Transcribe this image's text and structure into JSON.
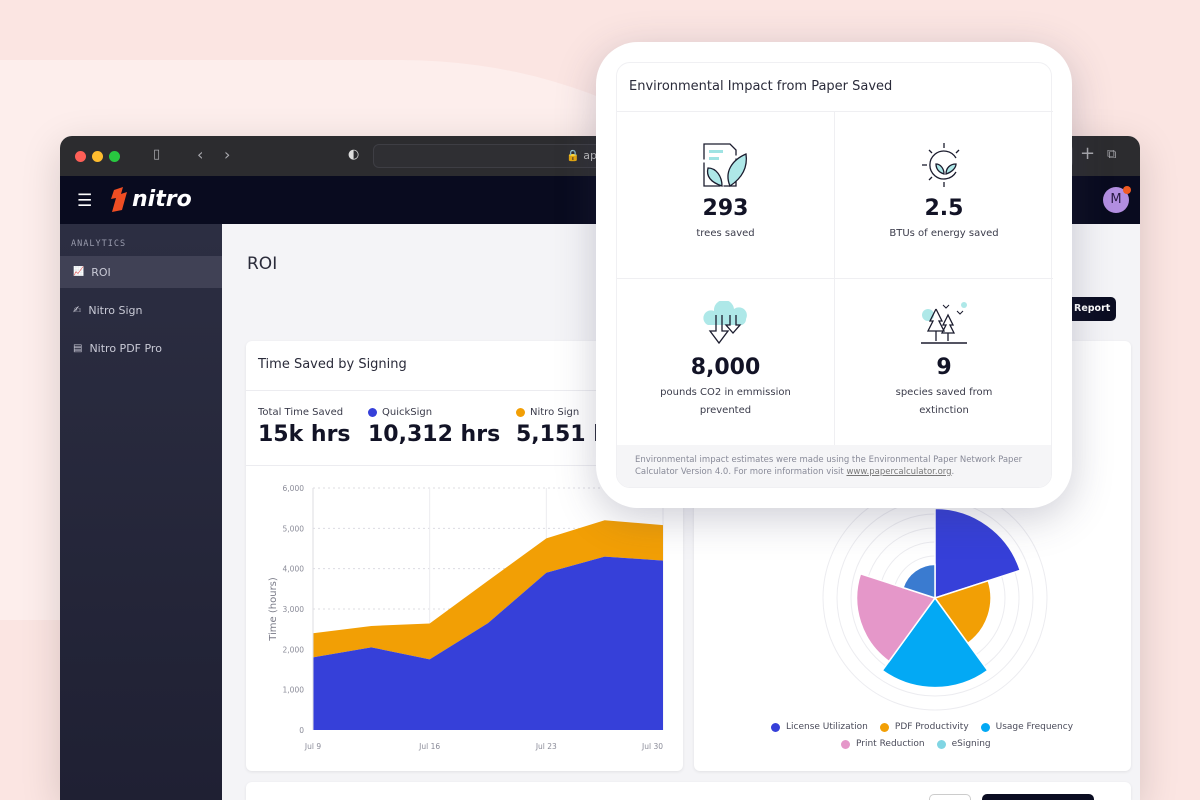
{
  "browser": {
    "address_text": "app"
  },
  "nav": {
    "logo_text": "nitro",
    "avatar_initial": "M"
  },
  "sidebar": {
    "section": "ANALYTICS",
    "items": [
      {
        "label": "ROI",
        "icon": "chart-icon",
        "active": true
      },
      {
        "label": "Nitro Sign",
        "icon": "signature-icon"
      },
      {
        "label": "Nitro PDF Pro",
        "icon": "document-icon"
      }
    ]
  },
  "main": {
    "title": "ROI",
    "report_button": "Report"
  },
  "time_card": {
    "title": "Time Saved by Signing",
    "stats": [
      {
        "label": "Total Time Saved",
        "value": "15k hrs"
      },
      {
        "label": "QuickSign",
        "value": "10,312 hrs",
        "color": "#3640d9"
      },
      {
        "label": "Nitro Sign",
        "value": "5,151 hrs",
        "color": "#f29f05"
      }
    ]
  },
  "chart_data": [
    {
      "type": "area",
      "stacked": true,
      "ylabel": "Time (hours)",
      "ylim": [
        0,
        6000
      ],
      "yticks": [
        "0",
        "1,000",
        "2,000",
        "3,000",
        "4,000",
        "5,000",
        "6,000"
      ],
      "xticks": [
        "Jul 9",
        "Jul 16",
        "Jul 23",
        "Jul 30"
      ],
      "x": [
        "Jul 9",
        "Jul 12",
        "Jul 16",
        "Jul 19",
        "Jul 23",
        "Jul 26",
        "Jul 30"
      ],
      "grid": true,
      "series": [
        {
          "name": "QuickSign",
          "color": "#3640d9",
          "values": [
            1800,
            2050,
            1750,
            2650,
            3900,
            4300,
            4200
          ]
        },
        {
          "name": "Nitro Sign",
          "color": "#f29f05",
          "values": [
            600,
            530,
            890,
            1050,
            850,
            900,
            880
          ]
        }
      ]
    },
    {
      "type": "polar-area",
      "legend": "bottom",
      "rmax": 100,
      "categories": [
        "License Utilization",
        "PDF Productivity",
        "Usage Frequency",
        "Print Reduction",
        "eSigning"
      ],
      "values": [
        80,
        50,
        80,
        70,
        30
      ],
      "colors": [
        "#3640d9",
        "#f29f05",
        "#03a9f4",
        "#e597c9",
        "#3a7bd0"
      ],
      "legend_colors": [
        "#3640d9",
        "#f29f05",
        "#03a9f4",
        "#e597c9",
        "#80d5e3"
      ]
    }
  ],
  "impact": {
    "title": "Environmental Impact from Paper Saved",
    "items": [
      {
        "value": "293",
        "label": "trees saved",
        "icon": "paper-leaf-icon"
      },
      {
        "value": "2.5",
        "label": "BTUs of energy saved",
        "icon": "sun-leaf-icon"
      },
      {
        "value": "8,000",
        "label": "pounds CO2 in emmission prevented",
        "icon": "cloud-arrows-icon"
      },
      {
        "value": "9",
        "label": "species saved from extinction",
        "icon": "forest-icon"
      }
    ],
    "footnote": "Environmental impact estimates were made using the Environmental Paper Network Paper Calculator Version 4.0. For more information visit ",
    "link": "www.papercalculator.org",
    "footnote_end": "."
  }
}
